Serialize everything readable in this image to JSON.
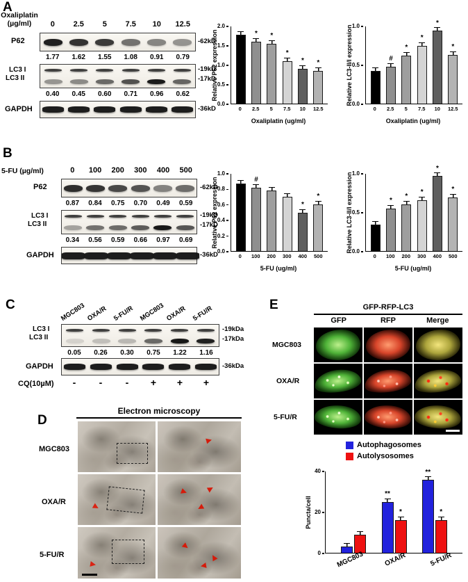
{
  "panelA": {
    "label": "A",
    "treatment": "Oxaliplatin",
    "treatment_unit": "(µg/ml)",
    "doses": [
      "0",
      "2.5",
      "5",
      "7.5",
      "10",
      "12.5"
    ],
    "p62": {
      "label": "P62",
      "marker": "-62kD",
      "values": [
        "1.77",
        "1.62",
        "1.55",
        "1.08",
        "0.91",
        "0.79"
      ]
    },
    "lc3": {
      "label1": "LC3 I",
      "label2": "LC3 II",
      "marker1": "-19kD",
      "marker2": "-17kD",
      "values": [
        "0.40",
        "0.45",
        "0.60",
        "0.71",
        "0.96",
        "0.62"
      ]
    },
    "gapdh": {
      "label": "GAPDH",
      "marker": "-36kD"
    }
  },
  "panelB": {
    "label": "B",
    "treatment": "5-FU (µg/ml)",
    "doses": [
      "0",
      "100",
      "200",
      "300",
      "400",
      "500"
    ],
    "p62": {
      "label": "P62",
      "marker": "-62kD",
      "values": [
        "0.87",
        "0.84",
        "0.75",
        "0.70",
        "0.49",
        "0.59"
      ]
    },
    "lc3": {
      "label1": "LC3 I",
      "label2": "LC3 II",
      "marker1": "-19kD",
      "marker2": "-17kD",
      "values": [
        "0.34",
        "0.56",
        "0.59",
        "0.66",
        "0.97",
        "0.69"
      ]
    },
    "gapdh": {
      "label": "GAPDH",
      "marker": "-36kD"
    }
  },
  "panelC": {
    "label": "C",
    "lanes": [
      "MGC803",
      "OXA/R",
      "5-FU/R",
      "MGC803",
      "OXA/R",
      "5-FU/R"
    ],
    "lc3": {
      "label1": "LC3 I",
      "label2": "LC3 II",
      "marker1": "-19kDa",
      "marker2": "-17kDa",
      "values": [
        "0.05",
        "0.26",
        "0.30",
        "0.75",
        "1.22",
        "1.16"
      ]
    },
    "gapdh": {
      "label": "GAPDH",
      "marker": "-36kDa"
    },
    "cq": {
      "label": "CQ(10µM)",
      "signs": [
        "-",
        "-",
        "-",
        "+",
        "+",
        "+"
      ]
    }
  },
  "panelD": {
    "label": "D",
    "title": "Electron microscopy",
    "rows": [
      "MGC803",
      "OXA/R",
      "5-FU/R"
    ]
  },
  "panelE": {
    "label": "E",
    "title": "GFP-RFP-LC3",
    "columns": [
      "GFP",
      "RFP",
      "Merge"
    ],
    "rows": [
      "MGC803",
      "OXA/R",
      "5-FU/R"
    ]
  },
  "chart_data": [
    {
      "id": "A-p62",
      "type": "bar",
      "title": "",
      "ylabel": "Relative P62 expression",
      "xlabel": "Oxaliplatin (ug/ml)",
      "categories": [
        "0",
        "2.5",
        "5",
        "7.5",
        "10",
        "12.5"
      ],
      "values": [
        1.78,
        1.6,
        1.55,
        1.1,
        0.9,
        0.85
      ],
      "annotations": [
        "",
        "*",
        "*",
        "*",
        "*",
        "*"
      ],
      "yticks": [
        "0.0",
        "0.5",
        "1.0",
        "1.5",
        "2.0"
      ],
      "ylim": [
        0,
        2
      ],
      "grid": false
    },
    {
      "id": "A-lc3",
      "type": "bar",
      "title": "",
      "ylabel": "Relative LC3-II/I expression",
      "xlabel": "Oxaliplatin (ug/ml)",
      "categories": [
        "0",
        "2.5",
        "5",
        "7.5",
        "10",
        "12.5"
      ],
      "values": [
        0.42,
        0.48,
        0.62,
        0.75,
        0.95,
        0.63
      ],
      "annotations": [
        "",
        "#",
        "*",
        "*",
        "*",
        "*"
      ],
      "yticks": [
        "0.0",
        "0.5",
        "1.0"
      ],
      "ylim": [
        0,
        1
      ],
      "grid": false
    },
    {
      "id": "B-p62",
      "type": "bar",
      "title": "",
      "ylabel": "Relative P62 expression",
      "xlabel": "5-FU (ug/ml)",
      "categories": [
        "0",
        "100",
        "200",
        "300",
        "400",
        "500"
      ],
      "values": [
        0.87,
        0.82,
        0.78,
        0.7,
        0.5,
        0.6
      ],
      "annotations": [
        "",
        "#",
        "",
        "",
        "*",
        "*"
      ],
      "yticks": [
        "0.0",
        "0.2",
        "0.4",
        "0.6",
        "0.8",
        "1.0"
      ],
      "ylim": [
        0,
        1
      ],
      "grid": false
    },
    {
      "id": "B-lc3",
      "type": "bar",
      "title": "",
      "ylabel": "Relative LC3-II/I expression",
      "xlabel": "5-FU (ug/ml)",
      "categories": [
        "0",
        "100",
        "200",
        "300",
        "400",
        "500"
      ],
      "values": [
        0.34,
        0.55,
        0.6,
        0.66,
        0.97,
        0.69
      ],
      "annotations": [
        "",
        "*",
        "*",
        "*",
        "*",
        "*"
      ],
      "yticks": [
        "0.0",
        "0.5",
        "1.0"
      ],
      "ylim": [
        0,
        1
      ],
      "grid": false
    },
    {
      "id": "E-puncta",
      "type": "grouped_bar",
      "title": "",
      "ylabel": "Puncta/cell",
      "xlabel": "",
      "categories": [
        "MGC803",
        "OXA/R",
        "5-FU/R"
      ],
      "series": [
        {
          "name": "Autophagosomes",
          "color": "#2222dd",
          "values": [
            3,
            25,
            36
          ],
          "annotations": [
            "",
            "**",
            "**"
          ]
        },
        {
          "name": "Autolysosomes",
          "color": "#ee1111",
          "values": [
            9,
            16,
            16
          ],
          "annotations": [
            "",
            "*",
            "*"
          ]
        }
      ],
      "yticks": [
        "0",
        "20",
        "40"
      ],
      "ylim": [
        0,
        40
      ],
      "legend_position": "top",
      "grid": false
    }
  ]
}
